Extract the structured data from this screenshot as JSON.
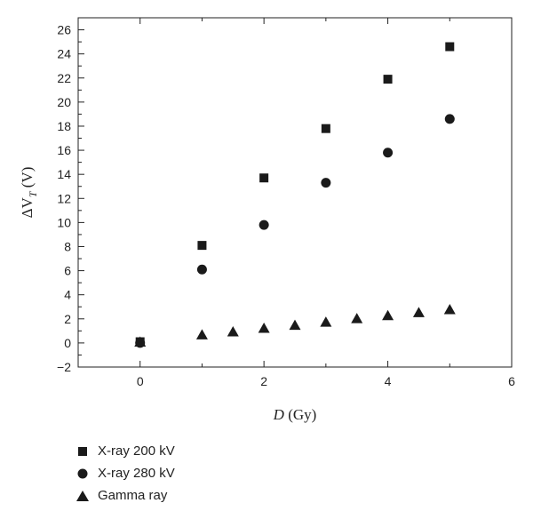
{
  "chart_data": {
    "type": "scatter",
    "xlabel_italic": "D",
    "xlabel_rest": " (Gy)",
    "ylabel_delta": "ΔV",
    "ylabel_sub": "T",
    "ylabel_rest": " (V)",
    "xlim": [
      -1,
      6
    ],
    "ylim": [
      -2,
      27
    ],
    "xticks": [
      0,
      2,
      4,
      6
    ],
    "yticks": [
      -2,
      0,
      2,
      4,
      6,
      8,
      10,
      12,
      14,
      16,
      18,
      20,
      22,
      24,
      26
    ],
    "grid": false,
    "legend_position": "bottom-left-outside",
    "series": [
      {
        "name": "X-ray 200 kV",
        "marker": "square",
        "color": "#1a1a1a",
        "x": [
          0,
          1,
          2,
          3,
          4,
          5
        ],
        "y": [
          0.1,
          8.1,
          13.7,
          17.8,
          21.9,
          24.6
        ]
      },
      {
        "name": "X-ray 280 kV",
        "marker": "circle",
        "color": "#1a1a1a",
        "x": [
          0,
          1,
          2,
          3,
          4,
          5
        ],
        "y": [
          0.0,
          6.1,
          9.8,
          13.3,
          15.8,
          18.6
        ]
      },
      {
        "name": "Gamma ray",
        "marker": "triangle",
        "color": "#1a1a1a",
        "x": [
          0,
          1,
          1.5,
          2,
          2.5,
          3,
          3.5,
          4,
          4.5,
          5
        ],
        "y": [
          0.1,
          0.7,
          0.95,
          1.25,
          1.5,
          1.75,
          2.05,
          2.3,
          2.55,
          2.8
        ]
      }
    ]
  }
}
